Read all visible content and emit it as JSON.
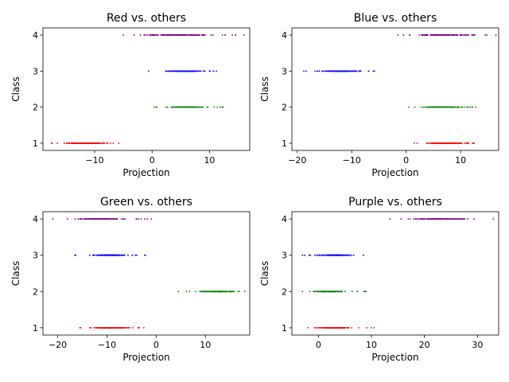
{
  "chart_data": [
    {
      "type": "scatter",
      "title": "Red vs. others",
      "xlabel": "Projection",
      "ylabel": "Class",
      "xlim": [
        -19,
        17
      ],
      "xticks": [
        -10,
        0,
        10
      ],
      "ylim": [
        0.8,
        4.2
      ],
      "yticks": [
        1,
        2,
        3,
        4
      ],
      "grid": false,
      "series": [
        {
          "color": "#ff0000",
          "y": 1,
          "range": [
            -17.5,
            -5.8
          ],
          "dense": [
            -16,
            -7
          ]
        },
        {
          "color": "#008000",
          "y": 2,
          "range": [
            0.4,
            12.4
          ],
          "dense": [
            1.5,
            10.5
          ]
        },
        {
          "color": "#0000ff",
          "y": 3,
          "range": [
            -0.6,
            11.2
          ],
          "dense": [
            1,
            10.5
          ]
        },
        {
          "color": "#800080",
          "y": 4,
          "range": [
            -5,
            16
          ],
          "dense": [
            -4,
            12.5
          ]
        }
      ]
    },
    {
      "type": "scatter",
      "title": "Blue vs. others",
      "xlabel": "Projection",
      "ylabel": "Class",
      "xlim": [
        -21,
        17
      ],
      "xticks": [
        -20,
        -10,
        0,
        10
      ],
      "ylim": [
        0.8,
        4.2
      ],
      "yticks": [
        1,
        2,
        3,
        4
      ],
      "grid": false,
      "series": [
        {
          "color": "#ff0000",
          "y": 1,
          "range": [
            1.5,
            12.5
          ],
          "dense": [
            3,
            12
          ]
        },
        {
          "color": "#008000",
          "y": 2,
          "range": [
            0.5,
            12.8
          ],
          "dense": [
            1.5,
            12
          ]
        },
        {
          "color": "#0000ff",
          "y": 3,
          "range": [
            -18.8,
            -5.8
          ],
          "dense": [
            -17,
            -7
          ]
        },
        {
          "color": "#800080",
          "y": 4,
          "range": [
            -1.5,
            16.5
          ],
          "dense": [
            0,
            14
          ]
        }
      ]
    },
    {
      "type": "scatter",
      "title": "Green vs. others",
      "xlabel": "Projection",
      "ylabel": "Class",
      "xlim": [
        -23,
        19
      ],
      "xticks": [
        -20,
        -10,
        0,
        10
      ],
      "ylim": [
        0.8,
        4.2
      ],
      "yticks": [
        1,
        2,
        3,
        4
      ],
      "grid": false,
      "series": [
        {
          "color": "#ff0000",
          "y": 1,
          "range": [
            -15.5,
            -2.5
          ],
          "dense": [
            -14,
            -5
          ]
        },
        {
          "color": "#008000",
          "y": 2,
          "range": [
            4.5,
            18
          ],
          "dense": [
            7,
            17.5
          ]
        },
        {
          "color": "#0000ff",
          "y": 3,
          "range": [
            -16.5,
            -2.2
          ],
          "dense": [
            -14,
            -5
          ]
        },
        {
          "color": "#800080",
          "y": 4,
          "range": [
            -21,
            -1
          ],
          "dense": [
            -18,
            -5
          ]
        }
      ]
    },
    {
      "type": "scatter",
      "title": "Purple vs. others",
      "xlabel": "Projection",
      "ylabel": "Class",
      "xlim": [
        -5,
        34
      ],
      "xticks": [
        0,
        10,
        20,
        30
      ],
      "ylim": [
        0.8,
        4.2
      ],
      "yticks": [
        1,
        2,
        3,
        4
      ],
      "grid": false,
      "series": [
        {
          "color": "#ff0000",
          "y": 1,
          "range": [
            -2,
            10.5
          ],
          "dense": [
            -1,
            7
          ]
        },
        {
          "color": "#008000",
          "y": 2,
          "range": [
            -3,
            9
          ],
          "dense": [
            -2,
            6
          ]
        },
        {
          "color": "#0000ff",
          "y": 3,
          "range": [
            -3,
            8.5
          ],
          "dense": [
            -1,
            7
          ]
        },
        {
          "color": "#800080",
          "y": 4,
          "range": [
            13.5,
            33
          ],
          "dense": [
            16,
            30
          ]
        }
      ]
    }
  ]
}
